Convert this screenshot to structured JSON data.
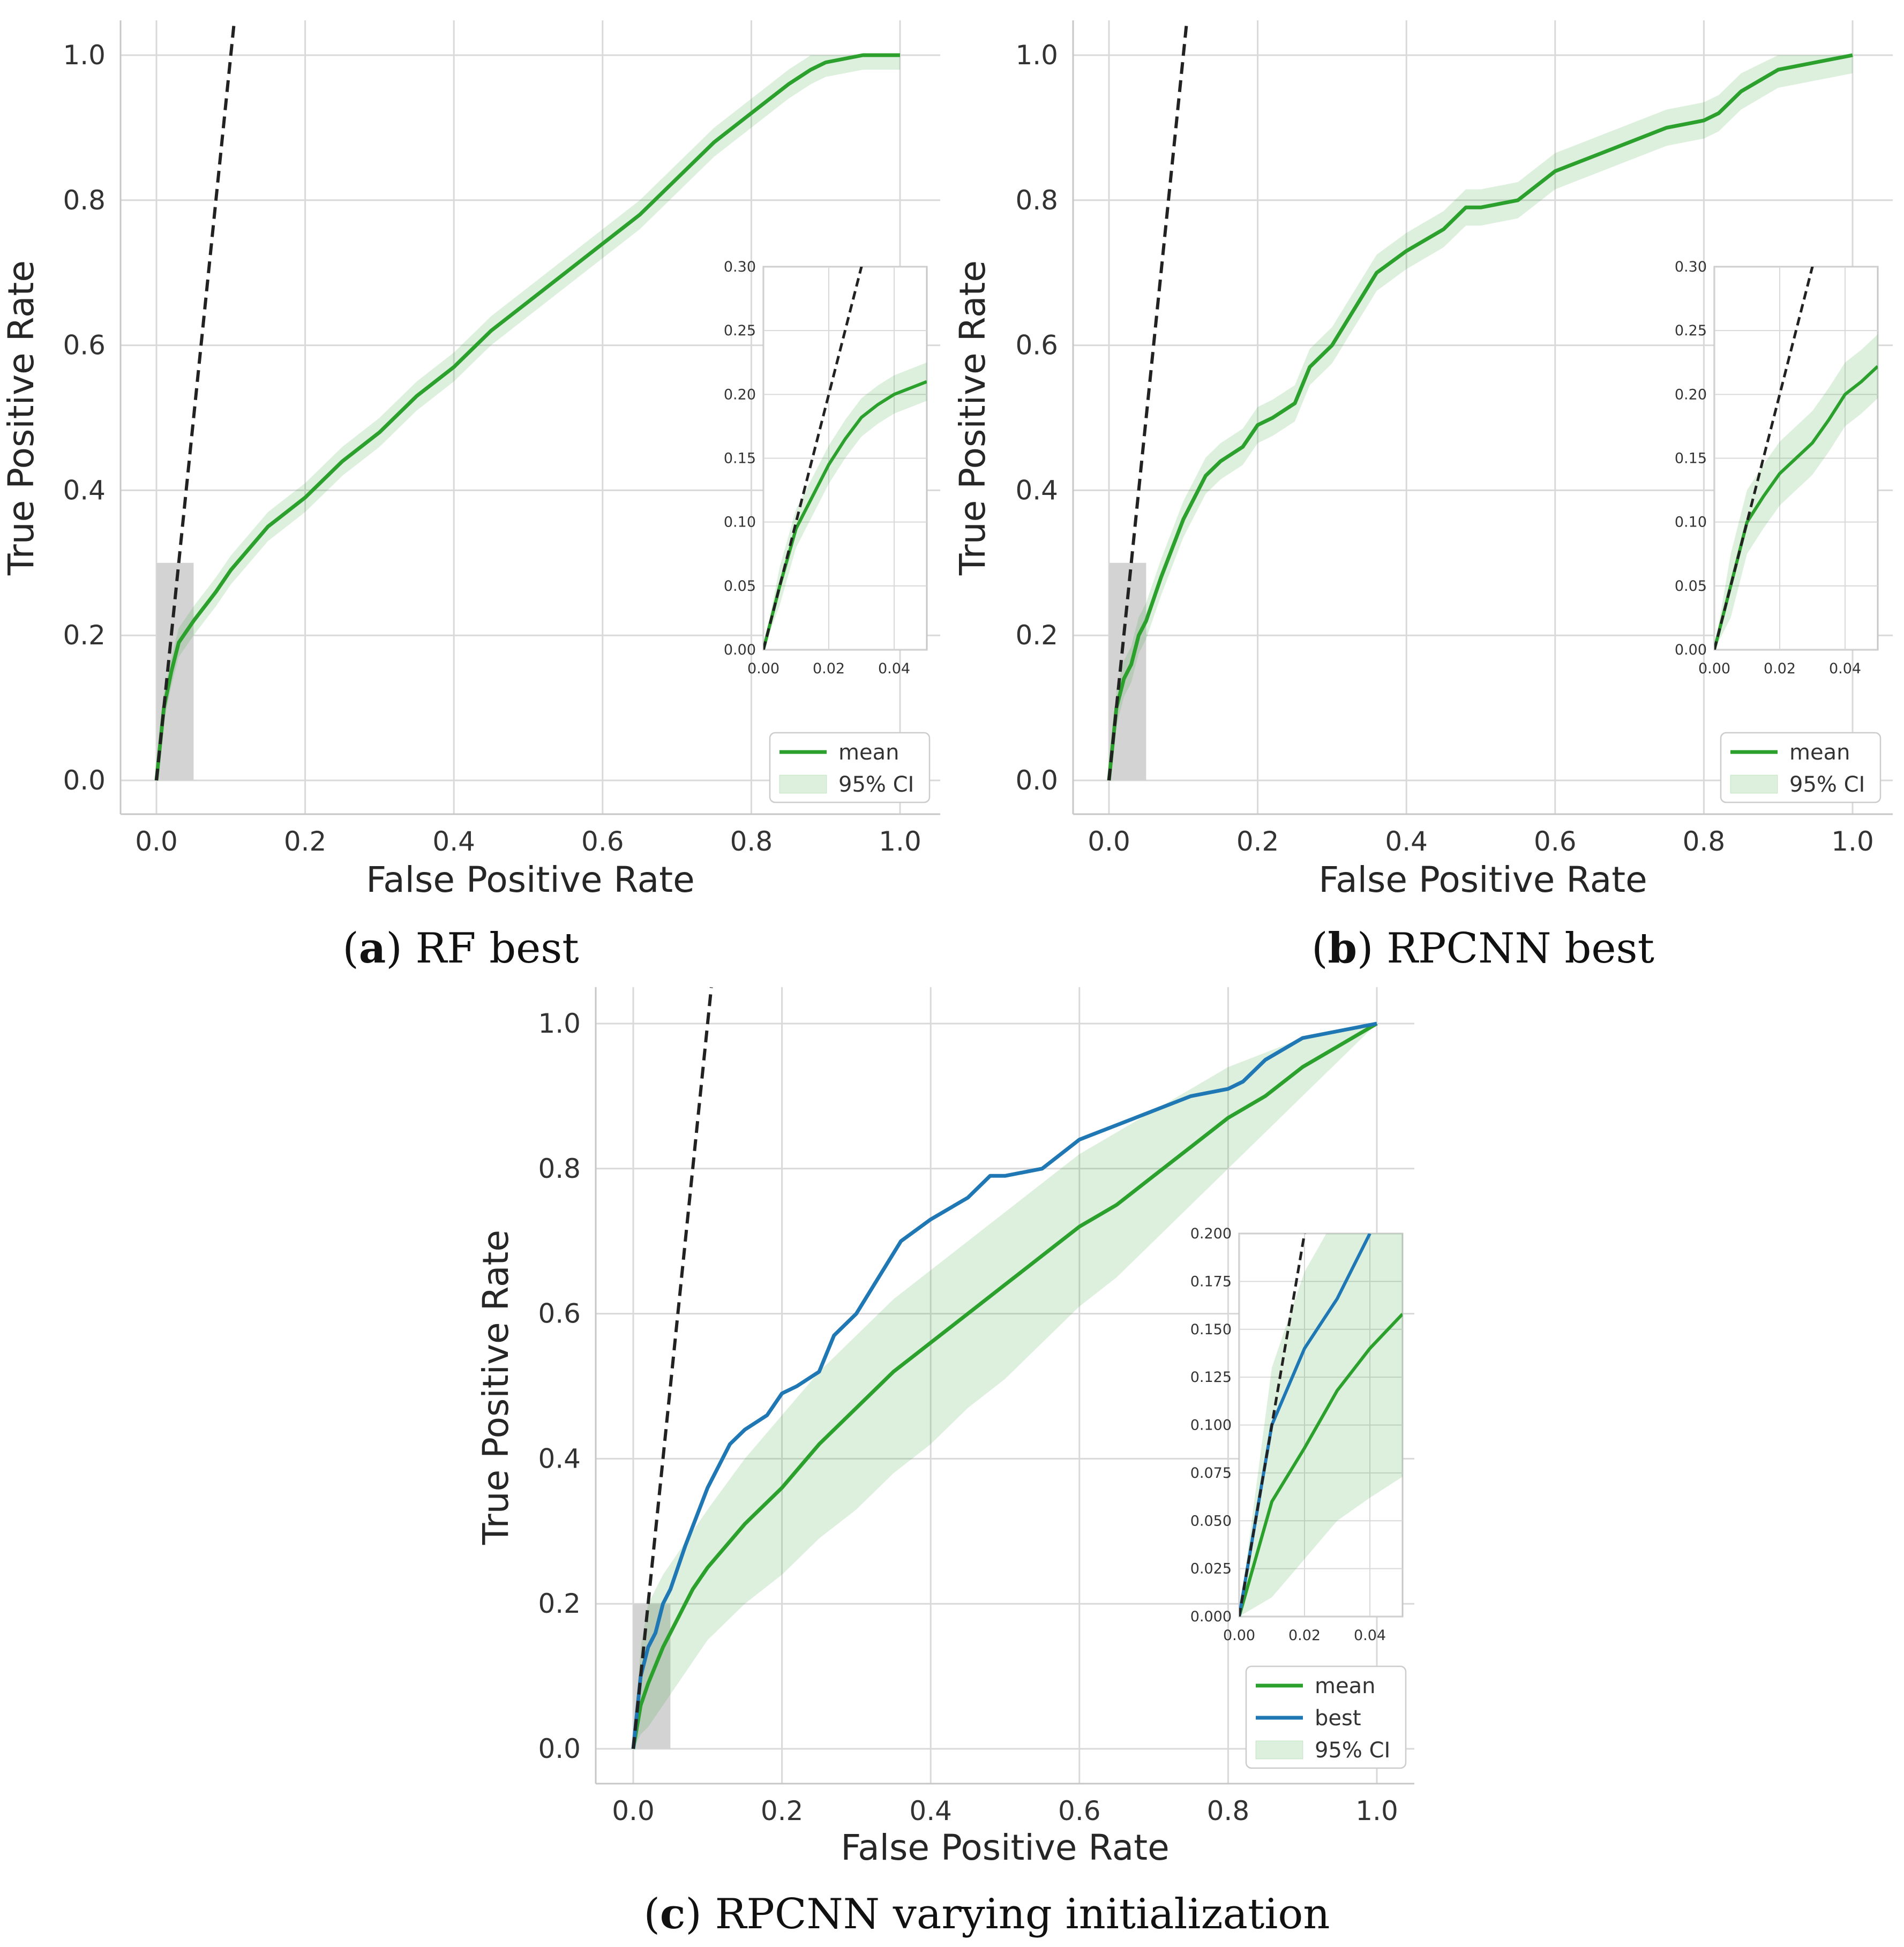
{
  "chart_data": [
    {
      "id": "a",
      "type": "line",
      "caption_label": "(a)",
      "caption_text": "RF best",
      "xlabel": "False Positive Rate",
      "ylabel": "True Positive Rate",
      "xlim": [
        -0.05,
        1.05
      ],
      "ylim": [
        -0.05,
        1.05
      ],
      "xticks": [
        "0.0",
        "0.2",
        "0.4",
        "0.6",
        "0.8",
        "1.0"
      ],
      "yticks": [
        "0.0",
        "0.2",
        "0.4",
        "0.6",
        "0.8",
        "1.0"
      ],
      "reference_line": {
        "style": "dashed",
        "color": "#000000",
        "slope": 10
      },
      "highlight_region": {
        "x": [
          0,
          0.05
        ],
        "y": [
          0,
          0.3
        ]
      },
      "series": [
        {
          "name": "mean",
          "color": "#2ca02c",
          "x": [
            0,
            0.01,
            0.02,
            0.03,
            0.05,
            0.08,
            0.1,
            0.15,
            0.2,
            0.25,
            0.3,
            0.35,
            0.4,
            0.45,
            0.5,
            0.55,
            0.6,
            0.65,
            0.7,
            0.75,
            0.8,
            0.85,
            0.88,
            0.9,
            0.95,
            1.0
          ],
          "y": [
            0,
            0.1,
            0.15,
            0.19,
            0.22,
            0.26,
            0.29,
            0.35,
            0.39,
            0.44,
            0.48,
            0.53,
            0.57,
            0.62,
            0.66,
            0.7,
            0.74,
            0.78,
            0.83,
            0.88,
            0.92,
            0.96,
            0.98,
            0.99,
            1.0,
            1.0
          ]
        },
        {
          "name": "95% CI",
          "color": "#2ca02c",
          "band": true,
          "lower_offset": 0.02,
          "upper_offset": 0.02
        }
      ],
      "inset": {
        "xlim": [
          0,
          0.05
        ],
        "ylim": [
          0,
          0.3
        ],
        "xticks": [
          "0.00",
          "0.02",
          "0.04"
        ],
        "yticks": [
          "0.00",
          "0.05",
          "0.10",
          "0.15",
          "0.20",
          "0.25",
          "0.30"
        ],
        "mean": {
          "x": [
            0,
            0.005,
            0.01,
            0.015,
            0.02,
            0.025,
            0.03,
            0.035,
            0.04,
            0.045,
            0.05
          ],
          "y": [
            0,
            0.05,
            0.095,
            0.12,
            0.145,
            0.165,
            0.182,
            0.192,
            0.2,
            0.205,
            0.21
          ]
        },
        "band_offset": 0.015
      },
      "legend": [
        "mean",
        "95% CI"
      ]
    },
    {
      "id": "b",
      "type": "line",
      "caption_label": "(b)",
      "caption_text": "RPCNN best",
      "xlabel": "False Positive Rate",
      "ylabel": "True Positive Rate",
      "xlim": [
        -0.05,
        1.05
      ],
      "ylim": [
        -0.05,
        1.05
      ],
      "xticks": [
        "0.0",
        "0.2",
        "0.4",
        "0.6",
        "0.8",
        "1.0"
      ],
      "yticks": [
        "0.0",
        "0.2",
        "0.4",
        "0.6",
        "0.8",
        "1.0"
      ],
      "reference_line": {
        "style": "dashed",
        "color": "#000000",
        "slope": 10
      },
      "highlight_region": {
        "x": [
          0,
          0.05
        ],
        "y": [
          0,
          0.3
        ]
      },
      "series": [
        {
          "name": "mean",
          "color": "#2ca02c",
          "x": [
            0,
            0.01,
            0.02,
            0.03,
            0.04,
            0.05,
            0.07,
            0.1,
            0.13,
            0.15,
            0.18,
            0.2,
            0.22,
            0.25,
            0.27,
            0.3,
            0.33,
            0.36,
            0.4,
            0.45,
            0.48,
            0.5,
            0.55,
            0.6,
            0.65,
            0.7,
            0.75,
            0.8,
            0.82,
            0.85,
            0.9,
            0.95,
            1.0
          ],
          "y": [
            0,
            0.1,
            0.14,
            0.16,
            0.2,
            0.22,
            0.28,
            0.36,
            0.42,
            0.44,
            0.46,
            0.49,
            0.5,
            0.52,
            0.57,
            0.6,
            0.65,
            0.7,
            0.73,
            0.76,
            0.79,
            0.79,
            0.8,
            0.84,
            0.86,
            0.88,
            0.9,
            0.91,
            0.92,
            0.95,
            0.98,
            0.99,
            1.0
          ]
        },
        {
          "name": "95% CI",
          "color": "#2ca02c",
          "band": true,
          "lower_offset": 0.025,
          "upper_offset": 0.025
        }
      ],
      "inset": {
        "xlim": [
          0,
          0.05
        ],
        "ylim": [
          0,
          0.3
        ],
        "xticks": [
          "0.00",
          "0.02",
          "0.04"
        ],
        "yticks": [
          "0.00",
          "0.05",
          "0.10",
          "0.15",
          "0.20",
          "0.25",
          "0.30"
        ],
        "mean": {
          "x": [
            0,
            0.005,
            0.01,
            0.015,
            0.02,
            0.025,
            0.03,
            0.035,
            0.04,
            0.045,
            0.05
          ],
          "y": [
            0,
            0.05,
            0.1,
            0.12,
            0.138,
            0.15,
            0.162,
            0.18,
            0.2,
            0.21,
            0.222
          ]
        },
        "band_offset": 0.025
      },
      "legend": [
        "mean",
        "95% CI"
      ]
    },
    {
      "id": "c",
      "type": "line",
      "caption_label": "(c)",
      "caption_text": "RPCNN varying initialization",
      "xlabel": "False Positive Rate",
      "ylabel": "True Positive Rate",
      "xlim": [
        -0.05,
        1.05
      ],
      "ylim": [
        -0.05,
        1.05
      ],
      "xticks": [
        "0.0",
        "0.2",
        "0.4",
        "0.6",
        "0.8",
        "1.0"
      ],
      "yticks": [
        "0.0",
        "0.2",
        "0.4",
        "0.6",
        "0.8",
        "1.0"
      ],
      "reference_line": {
        "style": "dashed",
        "color": "#000000",
        "slope": 10
      },
      "highlight_region": {
        "x": [
          0,
          0.05
        ],
        "y": [
          0,
          0.2
        ]
      },
      "series": [
        {
          "name": "mean",
          "color": "#2ca02c",
          "x": [
            0,
            0.01,
            0.02,
            0.04,
            0.06,
            0.08,
            0.1,
            0.15,
            0.2,
            0.25,
            0.3,
            0.35,
            0.4,
            0.45,
            0.5,
            0.55,
            0.6,
            0.65,
            0.7,
            0.75,
            0.8,
            0.85,
            0.9,
            0.95,
            1.0
          ],
          "y": [
            0,
            0.06,
            0.09,
            0.14,
            0.18,
            0.22,
            0.25,
            0.31,
            0.36,
            0.42,
            0.47,
            0.52,
            0.56,
            0.6,
            0.64,
            0.68,
            0.72,
            0.75,
            0.79,
            0.83,
            0.87,
            0.9,
            0.94,
            0.97,
            1.0
          ]
        },
        {
          "name": "best",
          "color": "#1f77b4",
          "x": [
            0,
            0.01,
            0.02,
            0.03,
            0.04,
            0.05,
            0.07,
            0.1,
            0.13,
            0.15,
            0.18,
            0.2,
            0.22,
            0.25,
            0.27,
            0.3,
            0.33,
            0.36,
            0.4,
            0.45,
            0.48,
            0.5,
            0.55,
            0.6,
            0.65,
            0.7,
            0.75,
            0.8,
            0.82,
            0.85,
            0.9,
            0.95,
            1.0
          ],
          "y": [
            0,
            0.1,
            0.14,
            0.16,
            0.2,
            0.22,
            0.28,
            0.36,
            0.42,
            0.44,
            0.46,
            0.49,
            0.5,
            0.52,
            0.57,
            0.6,
            0.65,
            0.7,
            0.73,
            0.76,
            0.79,
            0.79,
            0.8,
            0.84,
            0.86,
            0.88,
            0.9,
            0.91,
            0.92,
            0.95,
            0.98,
            0.99,
            1.0
          ]
        },
        {
          "name": "95% CI",
          "color": "#2ca02c",
          "band": true,
          "lower": [
            0,
            0.02,
            0.03,
            0.06,
            0.09,
            0.12,
            0.15,
            0.2,
            0.24,
            0.29,
            0.33,
            0.38,
            0.42,
            0.47,
            0.51,
            0.56,
            0.61,
            0.65,
            0.7,
            0.75,
            0.8,
            0.85,
            0.9,
            0.95,
            1.0
          ],
          "upper": [
            0,
            0.14,
            0.2,
            0.24,
            0.27,
            0.3,
            0.33,
            0.4,
            0.46,
            0.52,
            0.57,
            0.62,
            0.66,
            0.7,
            0.74,
            0.78,
            0.82,
            0.85,
            0.88,
            0.91,
            0.94,
            0.96,
            0.98,
            0.99,
            1.0
          ]
        }
      ],
      "inset": {
        "xlim": [
          0,
          0.05
        ],
        "ylim": [
          0,
          0.2
        ],
        "xticks": [
          "0.00",
          "0.02",
          "0.04"
        ],
        "yticks": [
          "0.000",
          "0.025",
          "0.050",
          "0.075",
          "0.100",
          "0.125",
          "0.150",
          "0.175",
          "0.200"
        ],
        "mean": {
          "x": [
            0,
            0.005,
            0.01,
            0.02,
            0.03,
            0.04,
            0.05
          ],
          "y": [
            0,
            0.03,
            0.06,
            0.088,
            0.118,
            0.14,
            0.158
          ]
        },
        "best": {
          "x": [
            0,
            0.005,
            0.01,
            0.015,
            0.02,
            0.025,
            0.03,
            0.035,
            0.04
          ],
          "y": [
            0,
            0.05,
            0.1,
            0.12,
            0.14,
            0.153,
            0.166,
            0.183,
            0.2
          ]
        },
        "band_lower": [
          0,
          0.005,
          0.01,
          0.03,
          0.05,
          0.062,
          0.073
        ],
        "band_upper": [
          0,
          0.065,
          0.13,
          0.18,
          0.21,
          0.21,
          0.21
        ]
      },
      "legend": [
        "mean",
        "best",
        "95% CI"
      ]
    }
  ]
}
